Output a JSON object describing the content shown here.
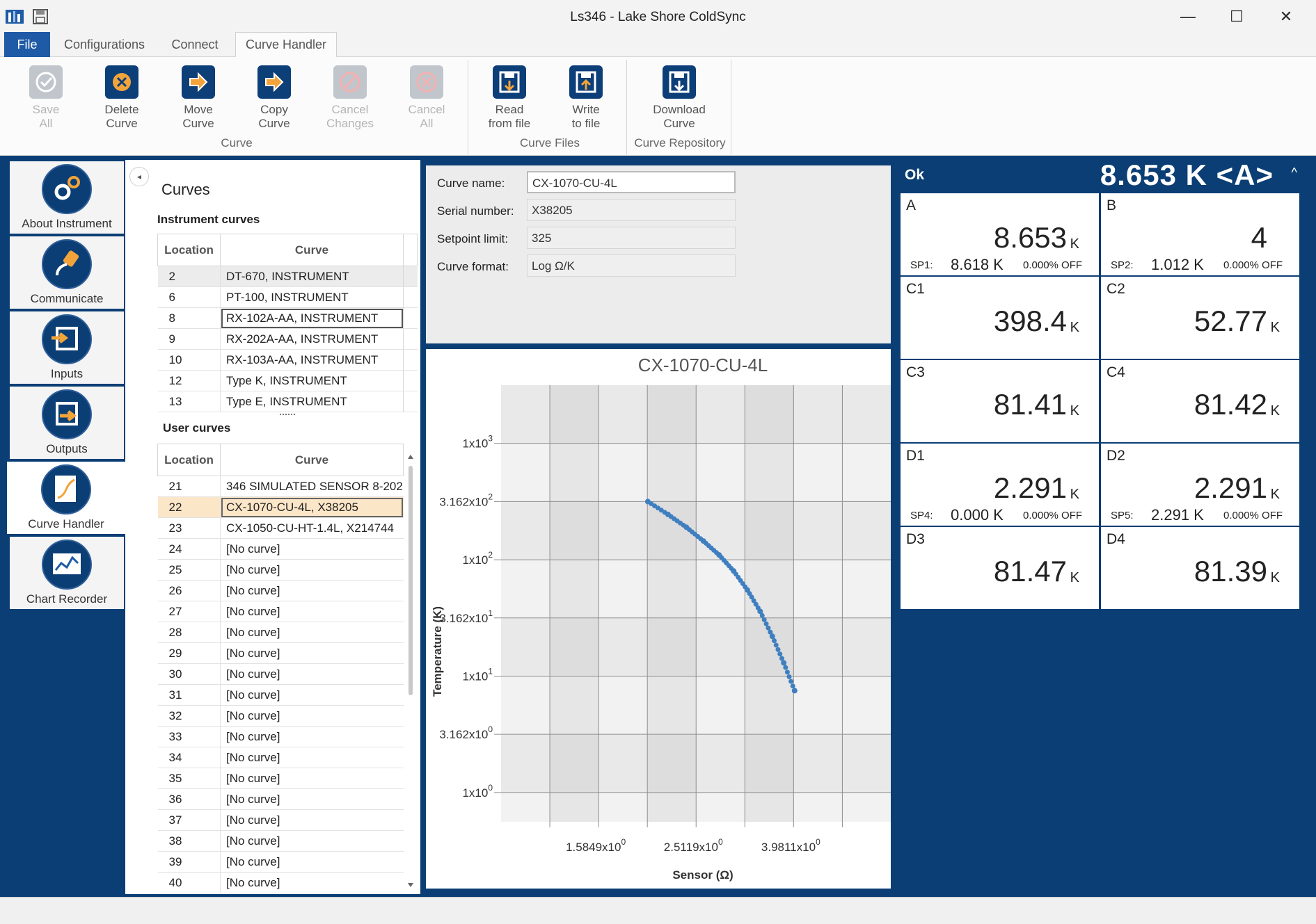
{
  "window": {
    "title": "Ls346 - Lake Shore ColdSync",
    "minimize": "—",
    "maximize": "☐",
    "close": "✕"
  },
  "ribbon_tabs": [
    "File",
    "Configurations",
    "Connect",
    "Curve Handler"
  ],
  "ribbon": {
    "buttons": [
      {
        "label1": "Save",
        "label2": "All",
        "icon": "save-all-icon",
        "enabled": false
      },
      {
        "label1": "Delete",
        "label2": "Curve",
        "icon": "delete-curve-icon",
        "enabled": true
      },
      {
        "label1": "Move",
        "label2": "Curve",
        "icon": "move-curve-icon",
        "enabled": true
      },
      {
        "label1": "Copy",
        "label2": "Curve",
        "icon": "copy-curve-icon",
        "enabled": true
      },
      {
        "label1": "Cancel",
        "label2": "Changes",
        "icon": "cancel-changes-icon",
        "enabled": false
      },
      {
        "label1": "Cancel",
        "label2": "All",
        "icon": "cancel-all-icon",
        "enabled": false
      },
      {
        "label1": "Read",
        "label2": "from file",
        "icon": "read-file-icon",
        "enabled": true
      },
      {
        "label1": "Write",
        "label2": "to file",
        "icon": "write-file-icon",
        "enabled": true
      },
      {
        "label1": "Download",
        "label2": "Curve",
        "icon": "download-curve-icon",
        "enabled": true
      }
    ],
    "groups": [
      "Curve",
      "Curve Files",
      "Curve Repository"
    ]
  },
  "nav": [
    {
      "label": "About Instrument",
      "icon": "gears-icon"
    },
    {
      "label": "Communicate",
      "icon": "plug-icon"
    },
    {
      "label": "Inputs",
      "icon": "inputs-icon"
    },
    {
      "label": "Outputs",
      "icon": "outputs-icon"
    },
    {
      "label": "Curve Handler",
      "icon": "curve-handler-icon"
    },
    {
      "label": "Chart Recorder",
      "icon": "chart-recorder-icon"
    }
  ],
  "curves": {
    "title": "Curves",
    "instrument_title": "Instrument curves",
    "user_title": "User curves",
    "col_location": "Location",
    "col_curve": "Curve",
    "instrument": [
      {
        "loc": "2",
        "curve": "DT-670, INSTRUMENT"
      },
      {
        "loc": "6",
        "curve": "PT-100, INSTRUMENT"
      },
      {
        "loc": "8",
        "curve": "RX-102A-AA, INSTRUMENT"
      },
      {
        "loc": "9",
        "curve": "RX-202A-AA, INSTRUMENT"
      },
      {
        "loc": "10",
        "curve": "RX-103A-AA, INSTRUMENT"
      },
      {
        "loc": "12",
        "curve": "Type K, INSTRUMENT"
      },
      {
        "loc": "13",
        "curve": "Type E, INSTRUMENT"
      }
    ],
    "user": [
      {
        "loc": "21",
        "curve": "346 SIMULATED SENSOR 8-202"
      },
      {
        "loc": "22",
        "curve": "CX-1070-CU-4L, X38205"
      },
      {
        "loc": "23",
        "curve": "CX-1050-CU-HT-1.4L, X214744"
      },
      {
        "loc": "24",
        "curve": "[No curve]"
      },
      {
        "loc": "25",
        "curve": "[No curve]"
      },
      {
        "loc": "26",
        "curve": "[No curve]"
      },
      {
        "loc": "27",
        "curve": "[No curve]"
      },
      {
        "loc": "28",
        "curve": "[No curve]"
      },
      {
        "loc": "29",
        "curve": "[No curve]"
      },
      {
        "loc": "30",
        "curve": "[No curve]"
      },
      {
        "loc": "31",
        "curve": "[No curve]"
      },
      {
        "loc": "32",
        "curve": "[No curve]"
      },
      {
        "loc": "33",
        "curve": "[No curve]"
      },
      {
        "loc": "34",
        "curve": "[No curve]"
      },
      {
        "loc": "35",
        "curve": "[No curve]"
      },
      {
        "loc": "36",
        "curve": "[No curve]"
      },
      {
        "loc": "37",
        "curve": "[No curve]"
      },
      {
        "loc": "38",
        "curve": "[No curve]"
      },
      {
        "loc": "39",
        "curve": "[No curve]"
      },
      {
        "loc": "40",
        "curve": "[No curve]"
      }
    ]
  },
  "info": {
    "name_label": "Curve name:",
    "name_value": "CX-1070-CU-4L",
    "serial_label": "Serial number:",
    "serial_value": "X38205",
    "limit_label": "Setpoint limit:",
    "limit_value": "325",
    "format_label": "Curve format:",
    "format_value": "Log Ω/K"
  },
  "chart_data": {
    "type": "line",
    "title": "CX-1070-CU-4L",
    "xlabel": "Sensor (Ω)",
    "ylabel": "Temperature (K)",
    "x_scale": "log",
    "y_scale": "log",
    "x_ticks": [
      "1.5849x10^0",
      "2.5119x10^0",
      "3.9811x10^0"
    ],
    "y_ticks": [
      "1x10^3",
      "3.162x10^2",
      "1x10^2",
      "3.162x10^1",
      "1x10^1",
      "3.162x10^0",
      "1x10^0"
    ],
    "grid": true,
    "series": [
      {
        "color": "#3f7fc0",
        "x": [
          2.0,
          2.2,
          2.4,
          2.6,
          2.8,
          3.0,
          3.2,
          3.4,
          3.6,
          3.8,
          4.0
        ],
        "y": [
          316,
          245,
          190,
          145,
          110,
          80,
          55,
          36,
          22,
          13,
          7.5
        ]
      }
    ]
  },
  "readings": {
    "status": "Ok",
    "main": "8.653 K <A>",
    "chevron": "^",
    "channels": [
      {
        "ch": "A",
        "val": "8.653",
        "unit": "K",
        "sp": "SP1:",
        "spval": "8.618 K",
        "htr": "0.000% OFF"
      },
      {
        "ch": "B",
        "val": "4",
        "unit": "",
        "sp": "SP2:",
        "spval": "1.012 K",
        "htr": "0.000% OFF"
      },
      {
        "ch": "C1",
        "val": "398.4",
        "unit": "K"
      },
      {
        "ch": "C2",
        "val": "52.77",
        "unit": "K"
      },
      {
        "ch": "C3",
        "val": "81.41",
        "unit": "K"
      },
      {
        "ch": "C4",
        "val": "81.42",
        "unit": "K"
      },
      {
        "ch": "D1",
        "val": "2.291",
        "unit": "K",
        "sp": "SP4:",
        "spval": "0.000 K",
        "htr": "0.000% OFF"
      },
      {
        "ch": "D2",
        "val": "2.291",
        "unit": "K",
        "sp": "SP5:",
        "spval": "2.291 K",
        "htr": "0.000% OFF"
      },
      {
        "ch": "D3",
        "val": "81.47",
        "unit": "K"
      },
      {
        "ch": "D4",
        "val": "81.39",
        "unit": "K"
      }
    ]
  }
}
